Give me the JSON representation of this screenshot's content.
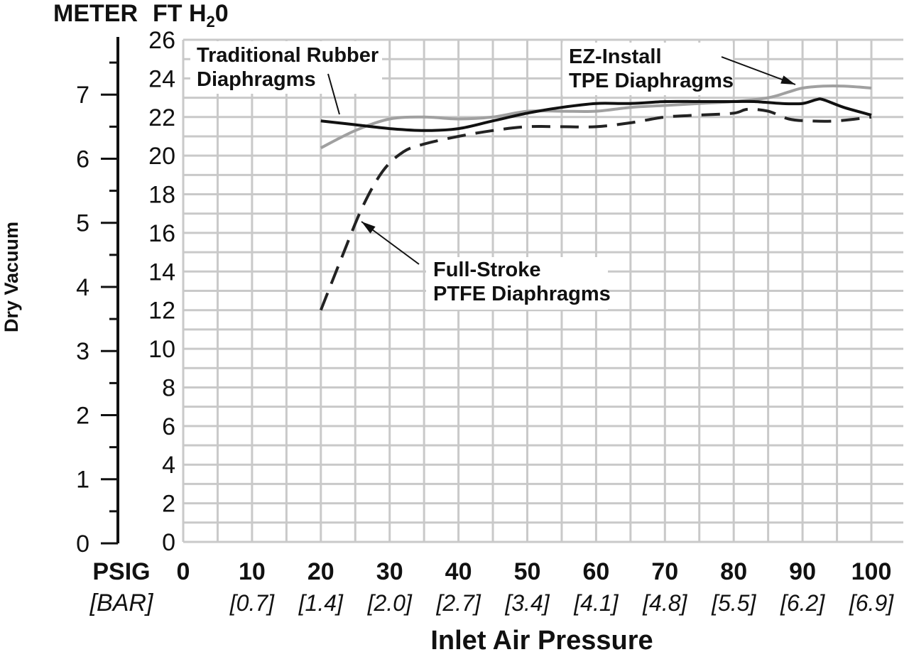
{
  "chart_data": {
    "type": "line",
    "header_left": "METER",
    "header_right_prefix": "FT H",
    "header_right_sub": "2",
    "header_right_suffix": "0",
    "ylabel": "Dry Vacuum",
    "xlabel": "Inlet Air Pressure",
    "x_unit_primary": "PSIG",
    "x_unit_secondary": "[BAR]",
    "x_ticks": [
      0,
      10,
      20,
      30,
      40,
      50,
      60,
      70,
      80,
      90,
      100
    ],
    "x_ticks_bar": [
      "",
      "[0.7]",
      "[1.4]",
      "[2.0]",
      "[2.7]",
      "[3.4]",
      "[4.1]",
      "[4.8]",
      "[5.5]",
      "[6.2]",
      "[6.9]"
    ],
    "ft_ticks": [
      0,
      2,
      4,
      6,
      8,
      10,
      12,
      14,
      16,
      18,
      20,
      22,
      24,
      26
    ],
    "meter_ticks": [
      0,
      1,
      2,
      3,
      4,
      5,
      6,
      7
    ],
    "xlim": [
      0,
      100
    ],
    "ylim_ft": [
      0,
      26
    ],
    "ylim_meter": [
      0,
      7.9
    ],
    "grid": true,
    "series": [
      {
        "name": "Traditional Rubber Diaphragms",
        "color": "#111111",
        "style": "solid",
        "x": [
          20,
          25,
          30,
          35,
          40,
          45,
          50,
          55,
          60,
          65,
          70,
          75,
          80,
          83,
          87,
          90,
          92,
          93,
          96,
          100
        ],
        "y": [
          21.8,
          21.6,
          21.4,
          21.3,
          21.4,
          21.8,
          22.2,
          22.5,
          22.7,
          22.7,
          22.8,
          22.8,
          22.8,
          22.8,
          22.7,
          22.7,
          22.9,
          22.9,
          22.5,
          22.1
        ]
      },
      {
        "name": "EZ-Install TPE Diaphragms",
        "color": "#a0a0a0",
        "style": "solid",
        "x": [
          20,
          25,
          30,
          35,
          40,
          45,
          50,
          55,
          60,
          65,
          70,
          75,
          80,
          85,
          88,
          90,
          93,
          96,
          100
        ],
        "y": [
          20.4,
          21.3,
          21.9,
          22.0,
          21.9,
          22.0,
          22.3,
          22.3,
          22.3,
          22.5,
          22.6,
          22.7,
          22.8,
          23.0,
          23.3,
          23.5,
          23.6,
          23.6,
          23.5
        ]
      },
      {
        "name": "Full-Stroke PTFE Diaphragms",
        "color": "#222222",
        "style": "dashed",
        "x": [
          20,
          23,
          26,
          29,
          32,
          35,
          40,
          45,
          50,
          55,
          60,
          65,
          70,
          75,
          80,
          82,
          85,
          88,
          91,
          95,
          100
        ],
        "y": [
          12.0,
          14.7,
          17.3,
          19.2,
          20.2,
          20.6,
          21.0,
          21.3,
          21.5,
          21.5,
          21.5,
          21.7,
          22.0,
          22.1,
          22.2,
          22.4,
          22.3,
          21.9,
          21.8,
          21.8,
          22.0
        ]
      }
    ],
    "annotations": [
      {
        "lines": [
          "Traditional Rubber",
          "Diaphragms"
        ],
        "target_series": 0
      },
      {
        "lines": [
          "EZ-Install",
          "TPE Diaphragms"
        ],
        "target_series": 1
      },
      {
        "lines": [
          "Full-Stroke",
          "PTFE Diaphragms"
        ],
        "target_series": 2
      }
    ]
  }
}
